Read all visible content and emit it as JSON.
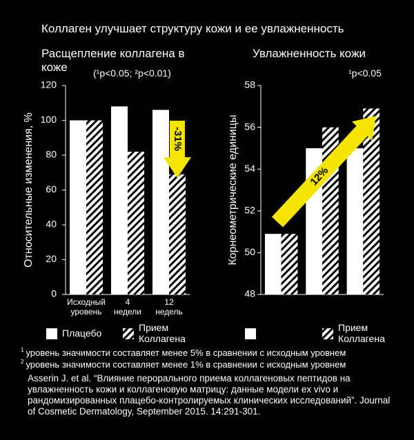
{
  "title": "Коллаген улучшает структуру кожи и ее увлажненность",
  "chart_data": [
    {
      "type": "bar",
      "title": "Расщепление коллагена в коже",
      "note": "(¹p<0.05; ²p<0.01)",
      "y_label": "Относительные изменения, %",
      "categories": [
        "Исходный уровень",
        "4 недели",
        "12 недель"
      ],
      "series": [
        {
          "name": "Плацебо",
          "color": "#ffffff",
          "hatch": false,
          "values": [
            100,
            108,
            106
          ]
        },
        {
          "name": "Прием Коллагена",
          "color": "#ffffff",
          "hatch": true,
          "values": [
            100,
            82,
            69
          ]
        }
      ],
      "ylim": [
        0,
        120
      ],
      "yticks": [
        0,
        20,
        40,
        60,
        80,
        100,
        120
      ],
      "annotation": "-31%",
      "annotation_color": "#f5e400"
    },
    {
      "type": "bar",
      "title": "Увлажненность кожи",
      "note": "¹p<0.05",
      "y_label": "Корнеометрические единицы",
      "categories": [
        null,
        null,
        null
      ],
      "series": [
        {
          "name": null,
          "color": "#ffffff",
          "hatch": false,
          "values": [
            50.9,
            55.0,
            55.0
          ]
        },
        {
          "name": "Прием Коллагена",
          "color": "#ffffff",
          "hatch": true,
          "values": [
            50.9,
            56.0,
            56.9
          ]
        }
      ],
      "ylim": [
        48,
        58
      ],
      "yticks": [
        48,
        50,
        52,
        54,
        56,
        58
      ],
      "annotation": "12%",
      "annotation_color": "#f5e400"
    }
  ],
  "footnotes": [
    {
      "marker": "1",
      "text": "уровень значимости составляет менее 5% в сравнении с исходным уровнем"
    },
    {
      "marker": "2",
      "text": "уровень значимости составляет менее 1% в сравнении с исходным уровнем"
    }
  ],
  "reference": "Asserin J. et al. “Влияние перорального приема коллагеновых пептидов на увлажненность кожи и коллагеновую матрицу: данные модели ex vivo и рандомизированных плацебо-контролируемых клинических исследований”. Journal of Cosmetic Dermatology, September 2015. 14:291-301."
}
